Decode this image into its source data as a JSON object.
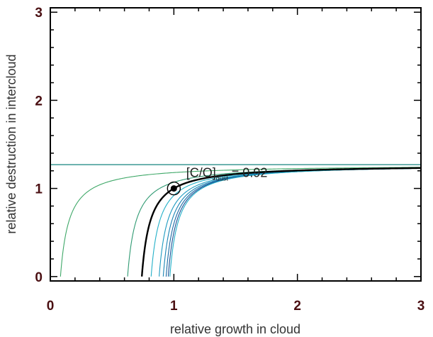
{
  "chart_data": {
    "type": "line",
    "title": "",
    "xlabel": "relative growth in cloud",
    "ylabel": "relative destruction in intercloud",
    "xlim": [
      0,
      3
    ],
    "ylim": [
      -0.05,
      3.05
    ],
    "x_ticks": [
      "0",
      "1",
      "2",
      "3"
    ],
    "y_ticks": [
      "0",
      "1",
      "2",
      "3"
    ],
    "grid": false,
    "legend": "none",
    "contour_levels": [
      1.18,
      1.07,
      1.0,
      0.92,
      0.8,
      0.7,
      0.6,
      0.5,
      0.4
    ],
    "asymptote_y": 1.27,
    "colors": {
      "axis": "#000000",
      "tick_label": "#4a0f12",
      "highlight_curve": "#000000",
      "asymptote": "#2a8f8a",
      "upper_curves": [
        "#2f9a72",
        "#3fa868",
        "#5fb55a",
        "#a3c84a"
      ],
      "lower_curves": [
        "#23b0c8",
        "#1d9ac0",
        "#1a84b4",
        "#1a6aa4",
        "#1a4f94"
      ]
    },
    "highlight_point": {
      "x": 1.0,
      "y": 1.0
    },
    "annotation": {
      "main": "[C/O]",
      "sub": "dust",
      "value": " = 0.92",
      "x": 1.1,
      "y": 1.13
    }
  }
}
